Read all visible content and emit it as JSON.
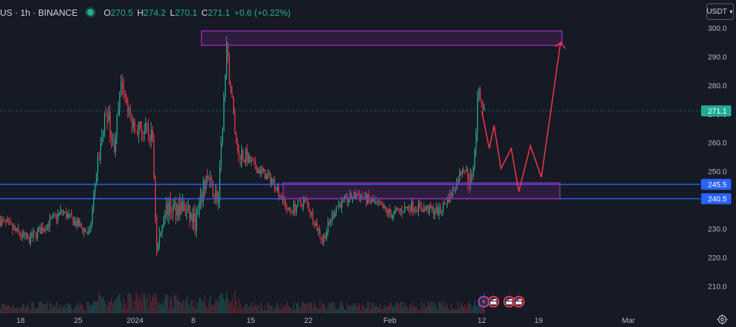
{
  "header": {
    "symbol_title": "US · 1h · BINANCE",
    "ohlc": [
      {
        "label": "O",
        "value": "270.5"
      },
      {
        "label": "H",
        "value": "274.2"
      },
      {
        "label": "L",
        "value": "270.1"
      },
      {
        "label": "C",
        "value": "271.1"
      }
    ],
    "change": "+0.6 (+0.22%)",
    "currency": "USDT"
  },
  "colors": {
    "background": "#161a25",
    "up": "#22ab94",
    "down": "#f23645",
    "level_line": "#2962ff",
    "zone": "#9c27b0",
    "projection": "#f23645"
  },
  "chart_data": {
    "type": "candlestick",
    "y_range": [
      201,
      303
    ],
    "y_ticks": [
      "300.0",
      "290.0",
      "280.0",
      "270.0",
      "260.0",
      "250.0",
      "240.0",
      "230.0",
      "220.0",
      "210.0"
    ],
    "x_ticks": [
      "18",
      "25",
      "2024",
      "8",
      "15",
      "22",
      "Feb",
      "12",
      "19",
      "Mar"
    ],
    "last_price": "271.1",
    "levels": [
      {
        "label": "245.5",
        "value": 245.5
      },
      {
        "label": "240.5",
        "value": 240.5
      }
    ],
    "zones": [
      {
        "from_tick": "8",
        "to_tick": "19",
        "low": 294,
        "high": 299
      },
      {
        "from_tick": "15",
        "to_tick": "12",
        "low": 240.5,
        "high": 246
      }
    ],
    "price_path": [
      {
        "t": 0,
        "v": 233
      },
      {
        "t": 40,
        "v": 226
      },
      {
        "t": 90,
        "v": 236
      },
      {
        "t": 130,
        "v": 228
      },
      {
        "t": 140,
        "v": 250
      },
      {
        "t": 155,
        "v": 272
      },
      {
        "t": 165,
        "v": 258
      },
      {
        "t": 178,
        "v": 282
      },
      {
        "t": 190,
        "v": 268
      },
      {
        "t": 205,
        "v": 265
      },
      {
        "t": 222,
        "v": 262
      },
      {
        "t": 228,
        "v": 222
      },
      {
        "t": 240,
        "v": 237
      },
      {
        "t": 265,
        "v": 238
      },
      {
        "t": 285,
        "v": 232
      },
      {
        "t": 300,
        "v": 248
      },
      {
        "t": 318,
        "v": 240
      },
      {
        "t": 330,
        "v": 292
      },
      {
        "t": 345,
        "v": 258
      },
      {
        "t": 370,
        "v": 252
      },
      {
        "t": 400,
        "v": 246
      },
      {
        "t": 420,
        "v": 236
      },
      {
        "t": 445,
        "v": 240
      },
      {
        "t": 470,
        "v": 226
      },
      {
        "t": 490,
        "v": 238
      },
      {
        "t": 520,
        "v": 242
      },
      {
        "t": 545,
        "v": 239
      },
      {
        "t": 570,
        "v": 235
      },
      {
        "t": 600,
        "v": 238
      },
      {
        "t": 640,
        "v": 236
      },
      {
        "t": 660,
        "v": 243
      },
      {
        "t": 675,
        "v": 252
      },
      {
        "t": 688,
        "v": 246
      },
      {
        "t": 698,
        "v": 279
      },
      {
        "t": 706,
        "v": 271
      }
    ],
    "projection": [
      {
        "t": 703,
        "v": 271
      },
      {
        "t": 714,
        "v": 258
      },
      {
        "t": 721,
        "v": 266
      },
      {
        "t": 731,
        "v": 251
      },
      {
        "t": 746,
        "v": 258
      },
      {
        "t": 757,
        "v": 243
      },
      {
        "t": 774,
        "v": 259
      },
      {
        "t": 790,
        "v": 248
      },
      {
        "t": 818,
        "v": 295
      }
    ]
  }
}
